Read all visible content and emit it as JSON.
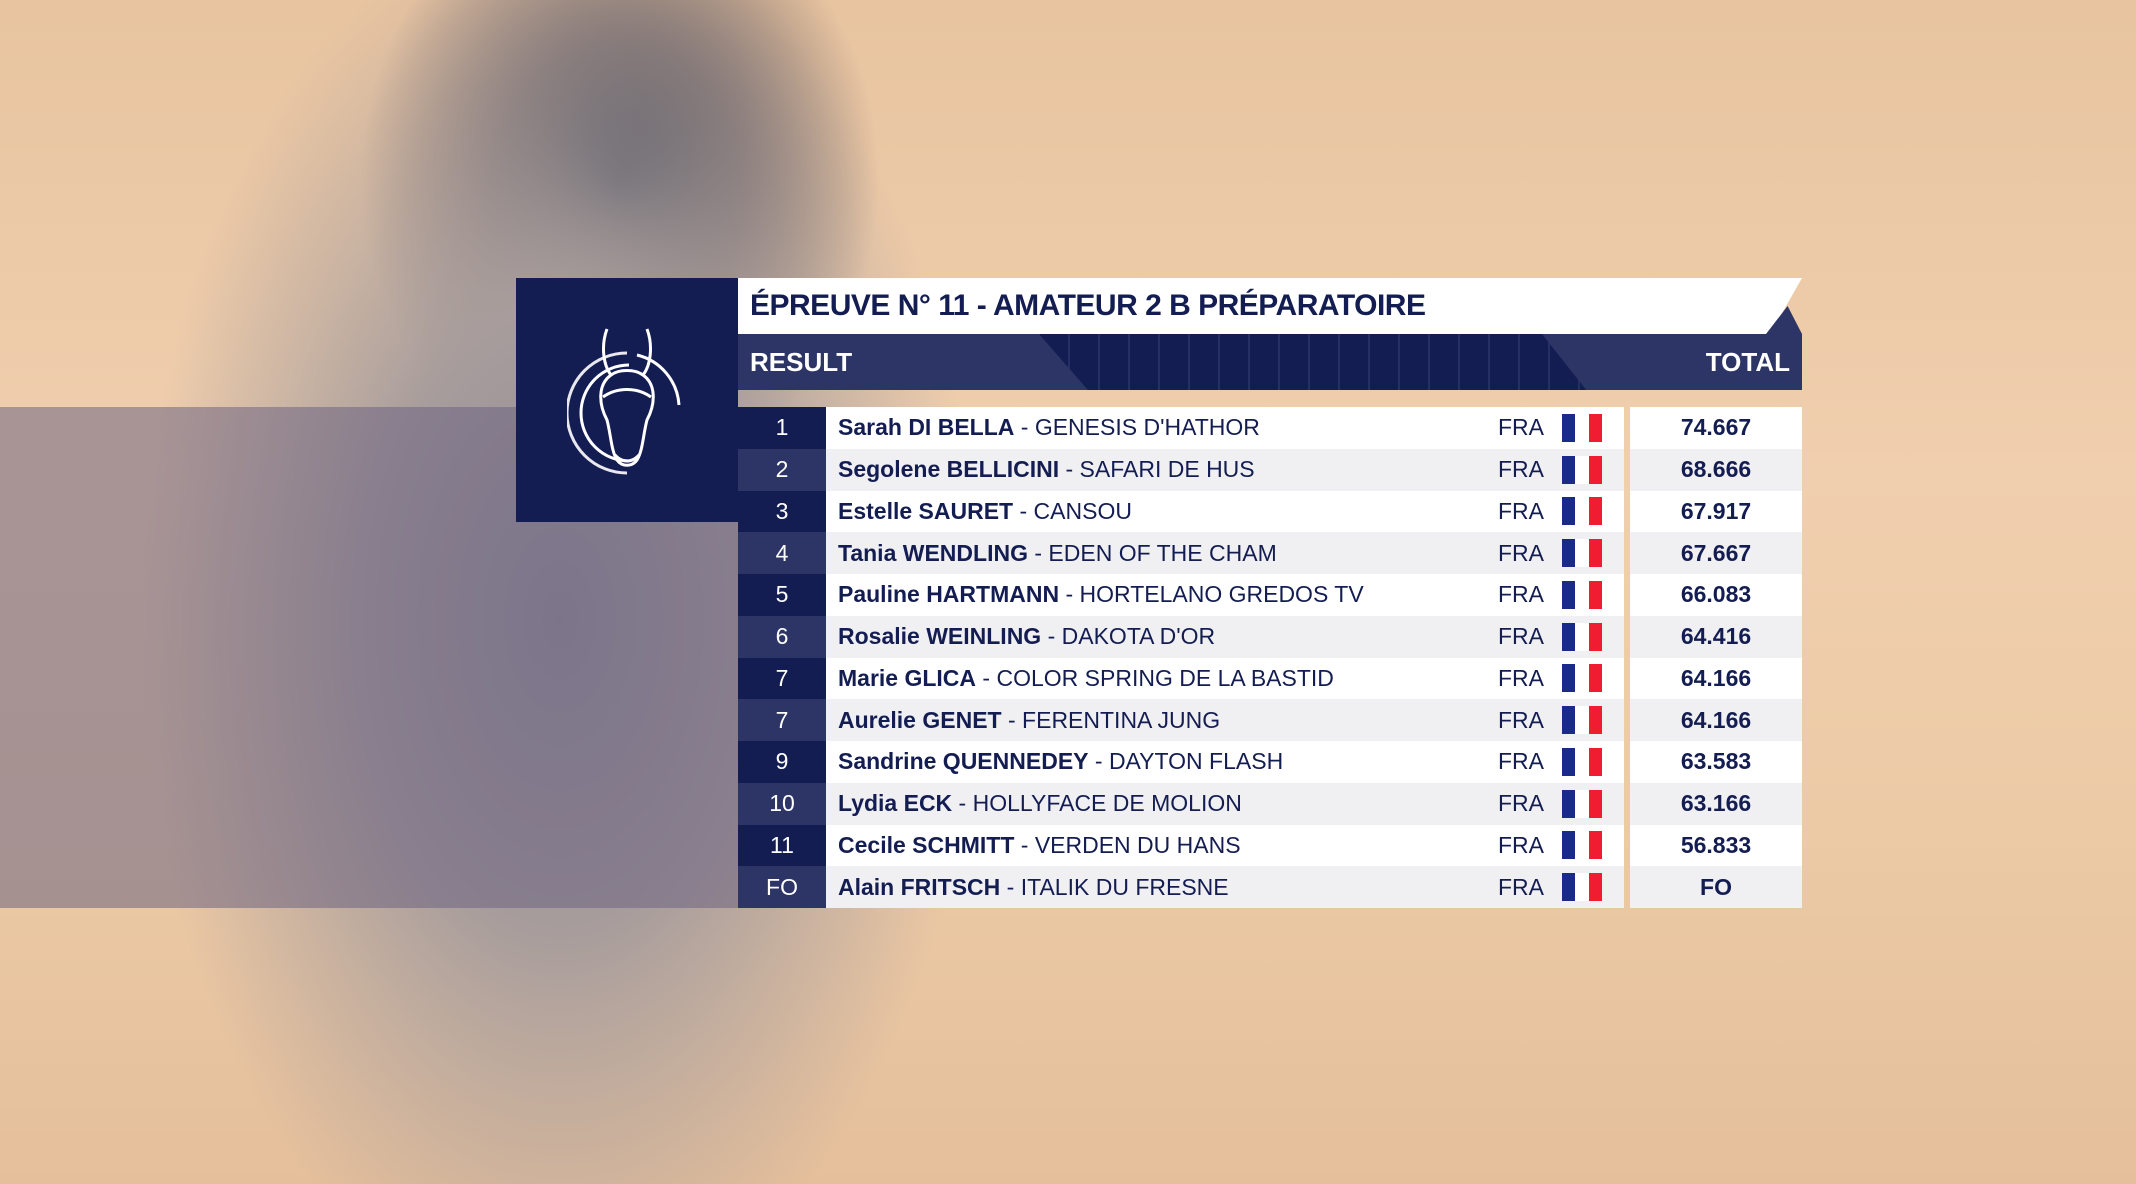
{
  "title": "ÉPREUVE N° 11 - AMATEUR 2 B PRÉPARATOIRE",
  "header": {
    "result": "RESULT",
    "total": "TOTAL"
  },
  "colors": {
    "navy": "#141d52",
    "navy_light": "#2c3566",
    "flag_blue": "#1a2a8a",
    "flag_red": "#ef1c32"
  },
  "logo_icon": "horse-head-logo",
  "rows": [
    {
      "rank": "1",
      "rider": "Sarah DI BELLA",
      "horse": " - GENESIS D'HATHOR",
      "nation": "FRA",
      "total": "74.667"
    },
    {
      "rank": "2",
      "rider": "Segolene BELLICINI",
      "horse": " - SAFARI DE HUS",
      "nation": "FRA",
      "total": "68.666"
    },
    {
      "rank": "3",
      "rider": "Estelle SAURET",
      "horse": " - CANSOU",
      "nation": "FRA",
      "total": "67.917"
    },
    {
      "rank": "4",
      "rider": "Tania WENDLING",
      "horse": " - EDEN OF THE CHAM",
      "nation": "FRA",
      "total": "67.667"
    },
    {
      "rank": "5",
      "rider": "Pauline HARTMANN",
      "horse": " - HORTELANO GREDOS TV",
      "nation": "FRA",
      "total": "66.083"
    },
    {
      "rank": "6",
      "rider": "Rosalie WEINLING",
      "horse": " - DAKOTA D'OR",
      "nation": "FRA",
      "total": "64.416"
    },
    {
      "rank": "7",
      "rider": "Marie GLICA",
      "horse": " - COLOR SPRING DE LA BASTID",
      "nation": "FRA",
      "total": "64.166"
    },
    {
      "rank": "7",
      "rider": "Aurelie GENET",
      "horse": " - FERENTINA JUNG",
      "nation": "FRA",
      "total": "64.166"
    },
    {
      "rank": "9",
      "rider": "Sandrine QUENNEDEY",
      "horse": " - DAYTON FLASH",
      "nation": "FRA",
      "total": "63.583"
    },
    {
      "rank": "10",
      "rider": "Lydia ECK",
      "horse": " - HOLLYFACE DE MOLION",
      "nation": "FRA",
      "total": "63.166"
    },
    {
      "rank": "11",
      "rider": "Cecile SCHMITT",
      "horse": " - VERDEN DU HANS",
      "nation": "FRA",
      "total": "56.833"
    },
    {
      "rank": "FO",
      "rider": "Alain FRITSCH",
      "horse": " - ITALIK DU FRESNE",
      "nation": "FRA",
      "total": "FO"
    }
  ]
}
